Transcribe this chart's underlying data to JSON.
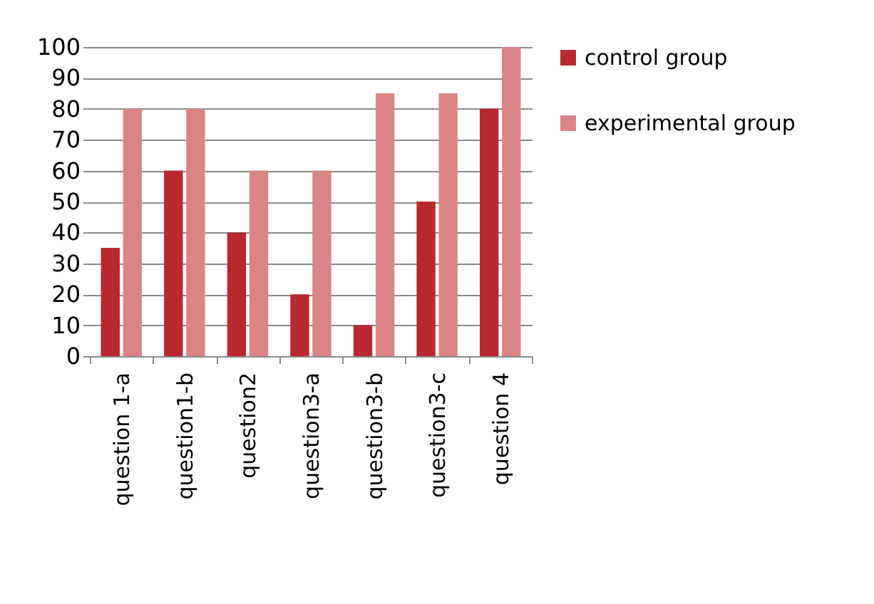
{
  "chart_data": {
    "type": "bar",
    "categories": [
      "question 1-a",
      "question1-b",
      "question2",
      "question3-a",
      "question3-b",
      "question3-c",
      "question 4"
    ],
    "series": [
      {
        "name": "control group",
        "color": "#b8292f",
        "values": [
          35,
          60,
          40,
          20,
          10,
          50,
          80
        ]
      },
      {
        "name": "experimental group",
        "color": "#d98585",
        "values": [
          80,
          80,
          60,
          60,
          85,
          85,
          100
        ]
      }
    ],
    "ylim": [
      0,
      100
    ],
    "yticks": [
      0,
      10,
      20,
      30,
      40,
      50,
      60,
      70,
      80,
      90,
      100
    ],
    "grid": "y",
    "legend": "right"
  }
}
